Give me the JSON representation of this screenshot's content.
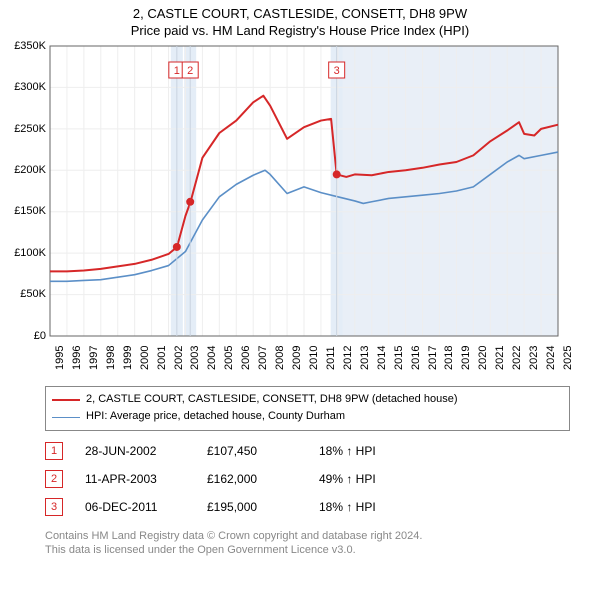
{
  "title": {
    "line1": "2, CASTLE COURT, CASTLESIDE, CONSETT, DH8 9PW",
    "line2": "Price paid vs. HM Land Registry's House Price Index (HPI)",
    "fontsize": 13
  },
  "chart": {
    "type": "line",
    "background_color": "#ffffff",
    "grid_color": "#eeeeee",
    "axis_color": "#666666",
    "shaded_region": {
      "start_year": 2012,
      "end_year": 2025,
      "fill": "#e9eff7"
    },
    "marker_highlight_fill": "#e4edf7",
    "x": {
      "min": 1995,
      "max": 2025,
      "tick_step": 1
    },
    "y": {
      "min": 0,
      "max": 350000,
      "tick_step": 50000,
      "prefix": "£",
      "suffix_k": "K"
    },
    "series": [
      {
        "name": "price_paid",
        "label": "2, CASTLE COURT, CASTLESIDE, CONSETT, DH8 9PW (detached house)",
        "color": "#d62728",
        "width": 2,
        "points": [
          [
            1995,
            78000
          ],
          [
            1996,
            78000
          ],
          [
            1997,
            79000
          ],
          [
            1998,
            81000
          ],
          [
            1999,
            84000
          ],
          [
            2000,
            87000
          ],
          [
            2001,
            92000
          ],
          [
            2002,
            99000
          ],
          [
            2002.5,
            107450
          ],
          [
            2003,
            145000
          ],
          [
            2003.3,
            162000
          ],
          [
            2004,
            215000
          ],
          [
            2005,
            245000
          ],
          [
            2006,
            260000
          ],
          [
            2007,
            282000
          ],
          [
            2007.6,
            290000
          ],
          [
            2008,
            278000
          ],
          [
            2009,
            238000
          ],
          [
            2010,
            252000
          ],
          [
            2011,
            260000
          ],
          [
            2011.6,
            262000
          ],
          [
            2011.93,
            195000
          ],
          [
            2012.5,
            192000
          ],
          [
            2013,
            195000
          ],
          [
            2014,
            194000
          ],
          [
            2015,
            198000
          ],
          [
            2016,
            200000
          ],
          [
            2017,
            203000
          ],
          [
            2018,
            207000
          ],
          [
            2019,
            210000
          ],
          [
            2020,
            218000
          ],
          [
            2021,
            235000
          ],
          [
            2022,
            248000
          ],
          [
            2022.7,
            258000
          ],
          [
            2023,
            244000
          ],
          [
            2023.6,
            242000
          ],
          [
            2024,
            250000
          ],
          [
            2025,
            255000
          ]
        ]
      },
      {
        "name": "hpi",
        "label": "HPI: Average price, detached house, County Durham",
        "color": "#5b8fc7",
        "width": 1.6,
        "points": [
          [
            1995,
            66000
          ],
          [
            1996,
            66000
          ],
          [
            1997,
            67000
          ],
          [
            1998,
            68000
          ],
          [
            1999,
            71000
          ],
          [
            2000,
            74000
          ],
          [
            2001,
            79000
          ],
          [
            2002,
            85000
          ],
          [
            2003,
            102000
          ],
          [
            2004,
            140000
          ],
          [
            2005,
            168000
          ],
          [
            2006,
            183000
          ],
          [
            2007,
            194000
          ],
          [
            2007.7,
            200000
          ],
          [
            2008,
            195000
          ],
          [
            2009,
            172000
          ],
          [
            2010,
            180000
          ],
          [
            2011,
            173000
          ],
          [
            2012,
            168000
          ],
          [
            2013,
            163000
          ],
          [
            2013.5,
            160000
          ],
          [
            2014,
            162000
          ],
          [
            2015,
            166000
          ],
          [
            2016,
            168000
          ],
          [
            2017,
            170000
          ],
          [
            2018,
            172000
          ],
          [
            2019,
            175000
          ],
          [
            2020,
            180000
          ],
          [
            2021,
            195000
          ],
          [
            2022,
            210000
          ],
          [
            2022.7,
            218000
          ],
          [
            2023,
            214000
          ],
          [
            2024,
            218000
          ],
          [
            2025,
            222000
          ]
        ]
      }
    ],
    "sale_markers": [
      {
        "n": "1",
        "year": 2002.49,
        "price": 107450
      },
      {
        "n": "2",
        "year": 2003.28,
        "price": 162000
      },
      {
        "n": "3",
        "year": 2011.93,
        "price": 195000
      }
    ],
    "sale_marker_box": {
      "border": "#d62728",
      "text": "#d62728",
      "size": 16,
      "y_from_top": 16
    },
    "dot_radius": 4
  },
  "legend": {
    "border_color": "#888888",
    "fontsize": 11
  },
  "sales_table": [
    {
      "n": "1",
      "date": "28-JUN-2002",
      "price": "£107,450",
      "change": "18% ↑ HPI"
    },
    {
      "n": "2",
      "date": "11-APR-2003",
      "price": "£162,000",
      "change": "49% ↑ HPI"
    },
    {
      "n": "3",
      "date": "06-DEC-2011",
      "price": "£195,000",
      "change": "18% ↑ HPI"
    }
  ],
  "attribution": {
    "line1": "Contains HM Land Registry data © Crown copyright and database right 2024.",
    "line2": "This data is licensed under the Open Government Licence v3.0.",
    "color": "#888888"
  }
}
